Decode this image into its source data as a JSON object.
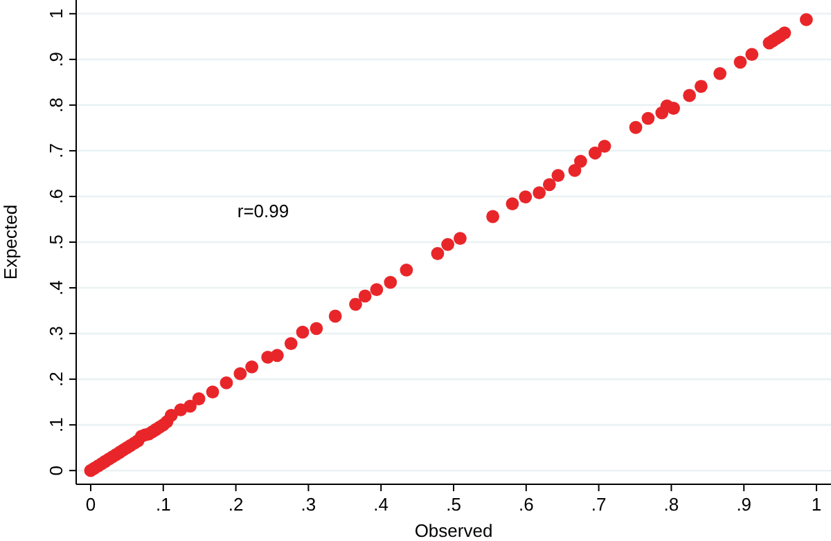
{
  "chart_data": {
    "type": "scatter",
    "xlabel": "Observed",
    "ylabel": "Expected",
    "annotations": [
      "r=0.99"
    ],
    "xlim": [
      -0.02,
      1.02
    ],
    "ylim": [
      -0.03,
      1.03
    ],
    "xticks": [
      {
        "value": 0,
        "label": "0"
      },
      {
        "value": 0.1,
        "label": ".1"
      },
      {
        "value": 0.2,
        "label": ".2"
      },
      {
        "value": 0.3,
        "label": ".3"
      },
      {
        "value": 0.4,
        "label": ".4"
      },
      {
        "value": 0.5,
        "label": ".5"
      },
      {
        "value": 0.6,
        "label": ".6"
      },
      {
        "value": 0.7,
        "label": ".7"
      },
      {
        "value": 0.8,
        "label": ".8"
      },
      {
        "value": 0.9,
        "label": ".9"
      },
      {
        "value": 1,
        "label": "1"
      }
    ],
    "yticks": [
      {
        "value": 0,
        "label": "0"
      },
      {
        "value": 0.1,
        "label": ".1"
      },
      {
        "value": 0.2,
        "label": ".2"
      },
      {
        "value": 0.3,
        "label": ".3"
      },
      {
        "value": 0.4,
        "label": ".4"
      },
      {
        "value": 0.5,
        "label": ".5"
      },
      {
        "value": 0.6,
        "label": ".6"
      },
      {
        "value": 0.7,
        "label": ".7"
      },
      {
        "value": 0.8,
        "label": ".8"
      },
      {
        "value": 0.9,
        "label": ".9"
      },
      {
        "value": 1,
        "label": "1"
      }
    ],
    "grid": "y",
    "marker": "circle",
    "series": [
      {
        "color": "#e8262a",
        "x": [
          0,
          0.005,
          0.01,
          0.015,
          0.02,
          0.025,
          0.03,
          0.035,
          0.04,
          0.045,
          0.05,
          0.055,
          0.06,
          0.065,
          0.07,
          0.075,
          0.08,
          0.085,
          0.09,
          0.095,
          0.1,
          0.105,
          0.111,
          0.124,
          0.137,
          0.149,
          0.168,
          0.187,
          0.206,
          0.222,
          0.244,
          0.257,
          0.276,
          0.292,
          0.311,
          0.337,
          0.365,
          0.378,
          0.394,
          0.413,
          0.435,
          0.478,
          0.492,
          0.509,
          0.554,
          0.581,
          0.599,
          0.618,
          0.632,
          0.644,
          0.667,
          0.675,
          0.695,
          0.708,
          0.751,
          0.768,
          0.787,
          0.794,
          0.803,
          0.825,
          0.841,
          0.867,
          0.895,
          0.911,
          0.935,
          0.94,
          0.945,
          0.95,
          0.956,
          0.986
        ],
        "values": [
          0,
          0.005,
          0.01,
          0.015,
          0.02,
          0.025,
          0.03,
          0.035,
          0.04,
          0.045,
          0.05,
          0.055,
          0.06,
          0.065,
          0.075,
          0.078,
          0.08,
          0.085,
          0.09,
          0.095,
          0.1,
          0.107,
          0.121,
          0.133,
          0.141,
          0.157,
          0.172,
          0.192,
          0.212,
          0.227,
          0.248,
          0.252,
          0.278,
          0.303,
          0.311,
          0.338,
          0.364,
          0.382,
          0.396,
          0.412,
          0.439,
          0.475,
          0.495,
          0.508,
          0.556,
          0.584,
          0.599,
          0.608,
          0.626,
          0.646,
          0.657,
          0.677,
          0.695,
          0.71,
          0.751,
          0.771,
          0.783,
          0.798,
          0.793,
          0.821,
          0.841,
          0.869,
          0.894,
          0.911,
          0.936,
          0.941,
          0.946,
          0.951,
          0.958,
          0.987
        ]
      }
    ]
  }
}
